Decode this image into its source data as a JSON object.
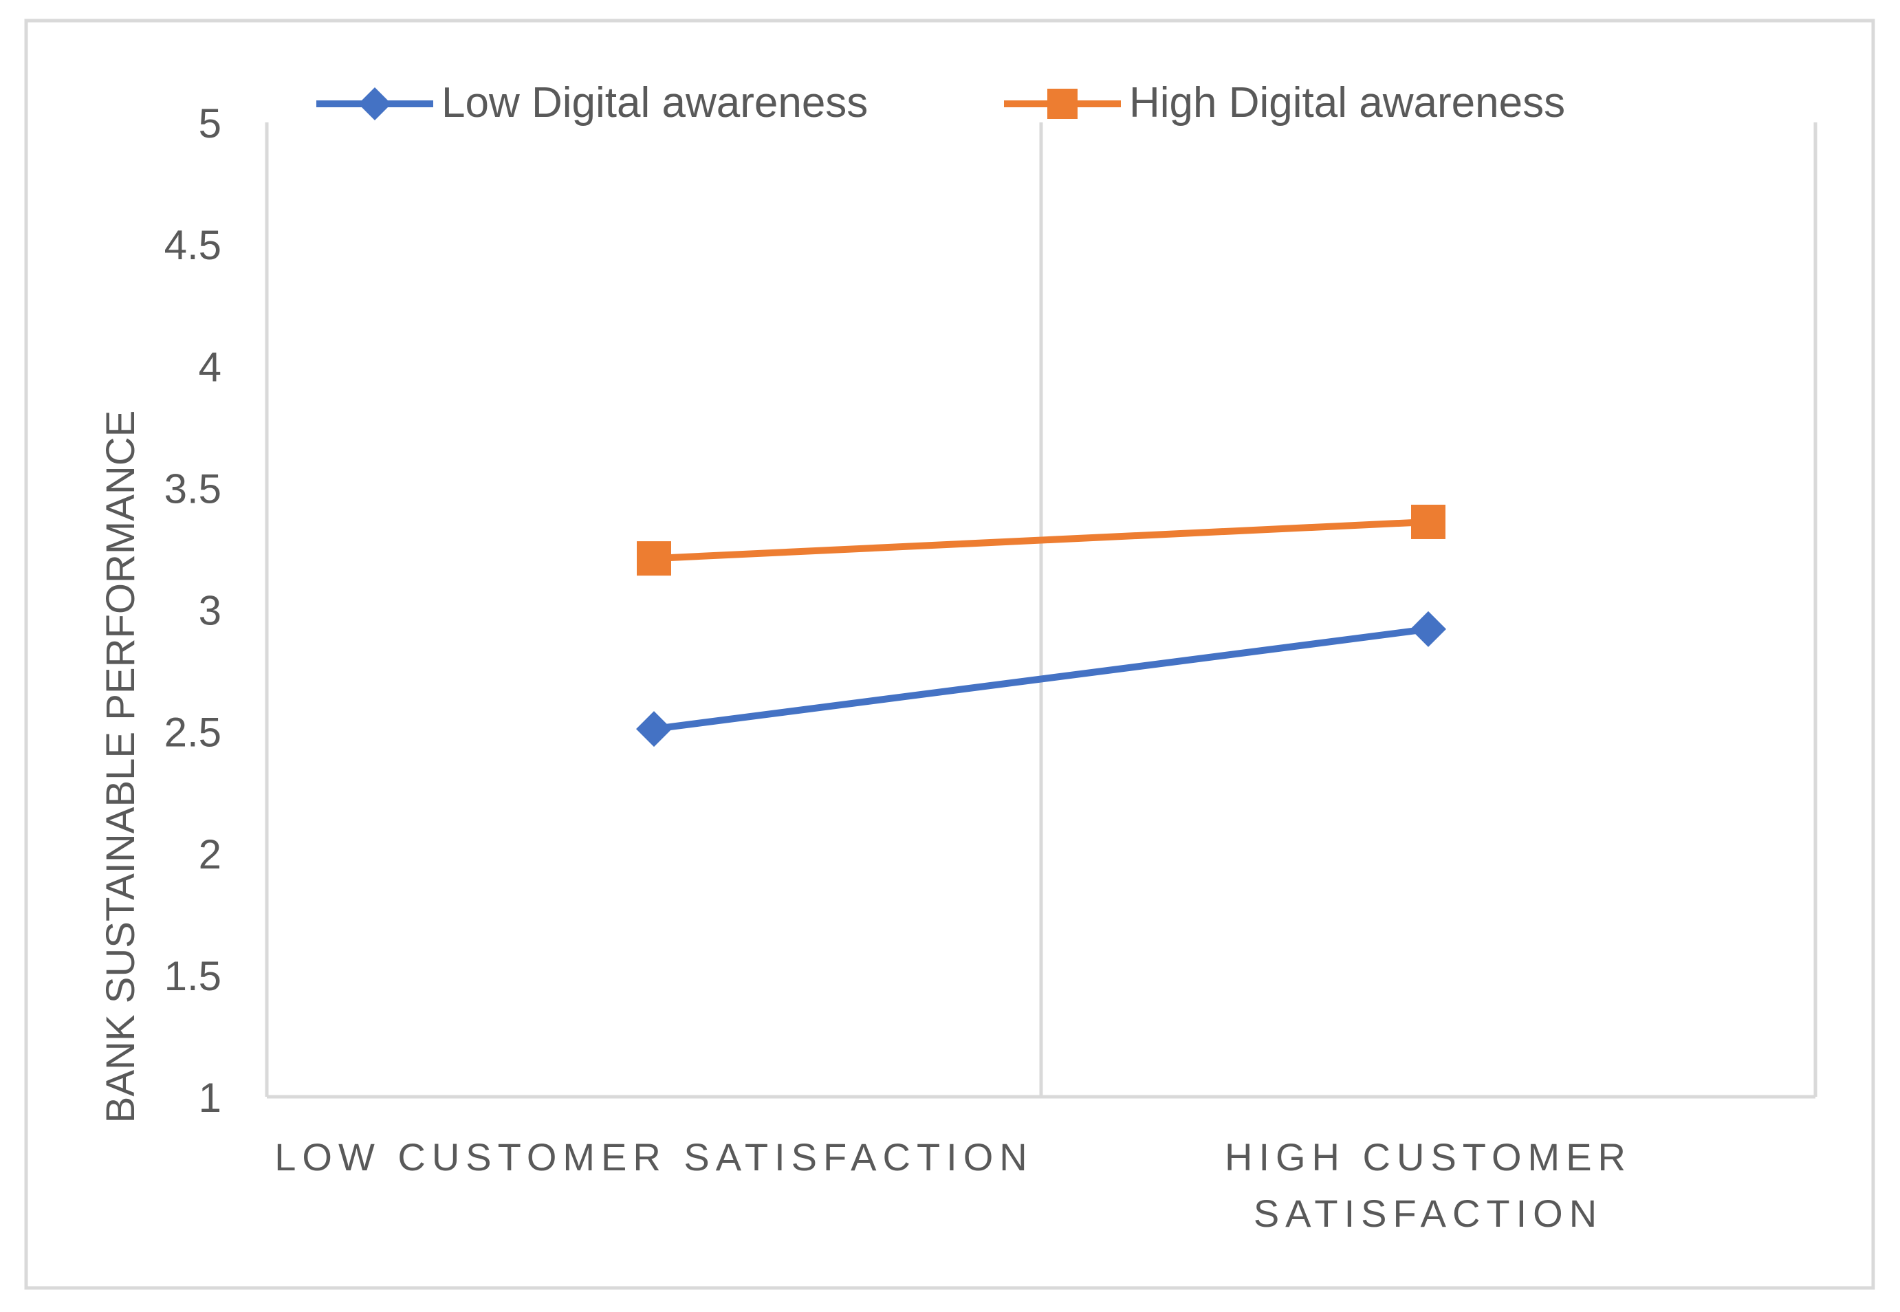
{
  "chart_data": {
    "type": "line",
    "title": "",
    "xlabel": "",
    "ylabel": "BANK SUSTAINABLE PERFORMANCE",
    "categories": [
      [
        "LOW CUSTOMER SATISFACTION"
      ],
      [
        "HIGH CUSTOMER",
        "SATISFACTION"
      ]
    ],
    "ylim": [
      1,
      5
    ],
    "yticks": [
      1,
      1.5,
      2,
      2.5,
      3,
      3.5,
      4,
      4.5,
      5
    ],
    "ytick_labels": [
      "1",
      "1.5",
      "2",
      "2.5",
      "3",
      "3.5",
      "4",
      "4.5",
      "5"
    ],
    "grid": false,
    "legend_position": "top",
    "series": [
      {
        "name": "Low Digital awareness",
        "marker": "diamond",
        "color": "#4472C4",
        "values": [
          2.51,
          2.92
        ]
      },
      {
        "name": "High Digital awareness",
        "marker": "square",
        "color": "#ED7D31",
        "values": [
          3.21,
          3.36
        ]
      }
    ]
  },
  "colors": {
    "axis": "#D9D9D9",
    "border": "#D9D9D9",
    "text": "#595959"
  }
}
